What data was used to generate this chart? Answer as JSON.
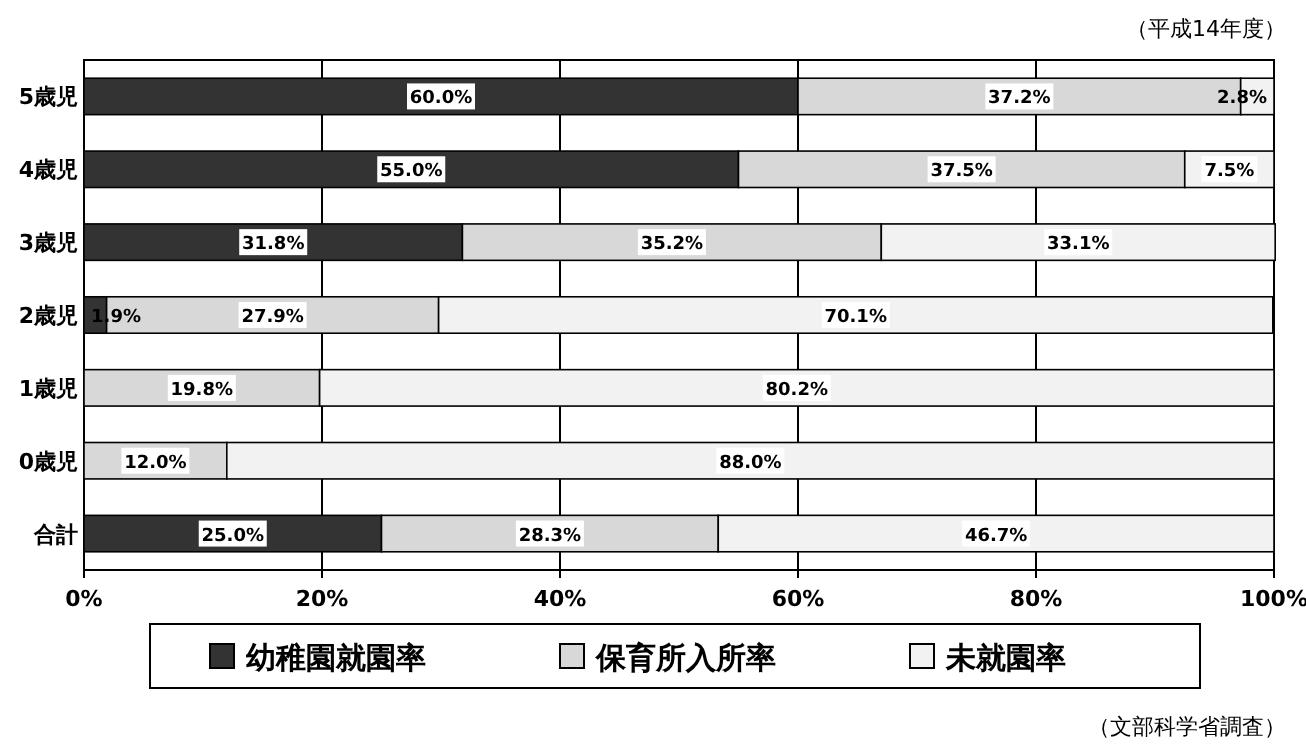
{
  "chart_data": {
    "type": "bar",
    "orientation": "horizontal",
    "stacked": true,
    "categories": [
      "5歳児",
      "4歳児",
      "3歳児",
      "2歳児",
      "1歳児",
      "0歳児",
      "合計"
    ],
    "series": [
      {
        "name": "幼稚園就園率",
        "color": "#333333",
        "values": [
          60.0,
          55.0,
          31.8,
          1.9,
          0,
          0,
          25.0
        ],
        "value_labels": [
          "60.0%",
          "55.0%",
          "31.8%",
          "1.9%",
          null,
          null,
          "25.0%"
        ]
      },
      {
        "name": "保育所入所率",
        "color": "#d8d8d8",
        "values": [
          37.2,
          37.5,
          35.2,
          27.9,
          19.8,
          12.0,
          28.3
        ],
        "value_labels": [
          "37.2%",
          "37.5%",
          "35.2%",
          "27.9%",
          "19.8%",
          "12.0%",
          "28.3%"
        ]
      },
      {
        "name": "未就園率",
        "color": "#f2f2f2",
        "values": [
          2.8,
          7.5,
          33.1,
          70.1,
          80.2,
          88.0,
          46.7
        ],
        "value_labels": [
          "2.8%",
          "7.5%",
          "33.1%",
          "70.1%",
          "80.2%",
          "88.0%",
          "46.7%"
        ]
      }
    ],
    "xlim": [
      0,
      100
    ],
    "xticks": [
      {
        "value": 0,
        "label": "0%"
      },
      {
        "value": 20,
        "label": "20%"
      },
      {
        "value": 40,
        "label": "40%"
      },
      {
        "value": 60,
        "label": "60%"
      },
      {
        "value": 80,
        "label": "80%"
      },
      {
        "value": 100,
        "label": "100%"
      }
    ],
    "grid": "x",
    "legend": "bottom",
    "annotations": [
      "（平成14年度）",
      "（文部科学省調査）"
    ]
  }
}
